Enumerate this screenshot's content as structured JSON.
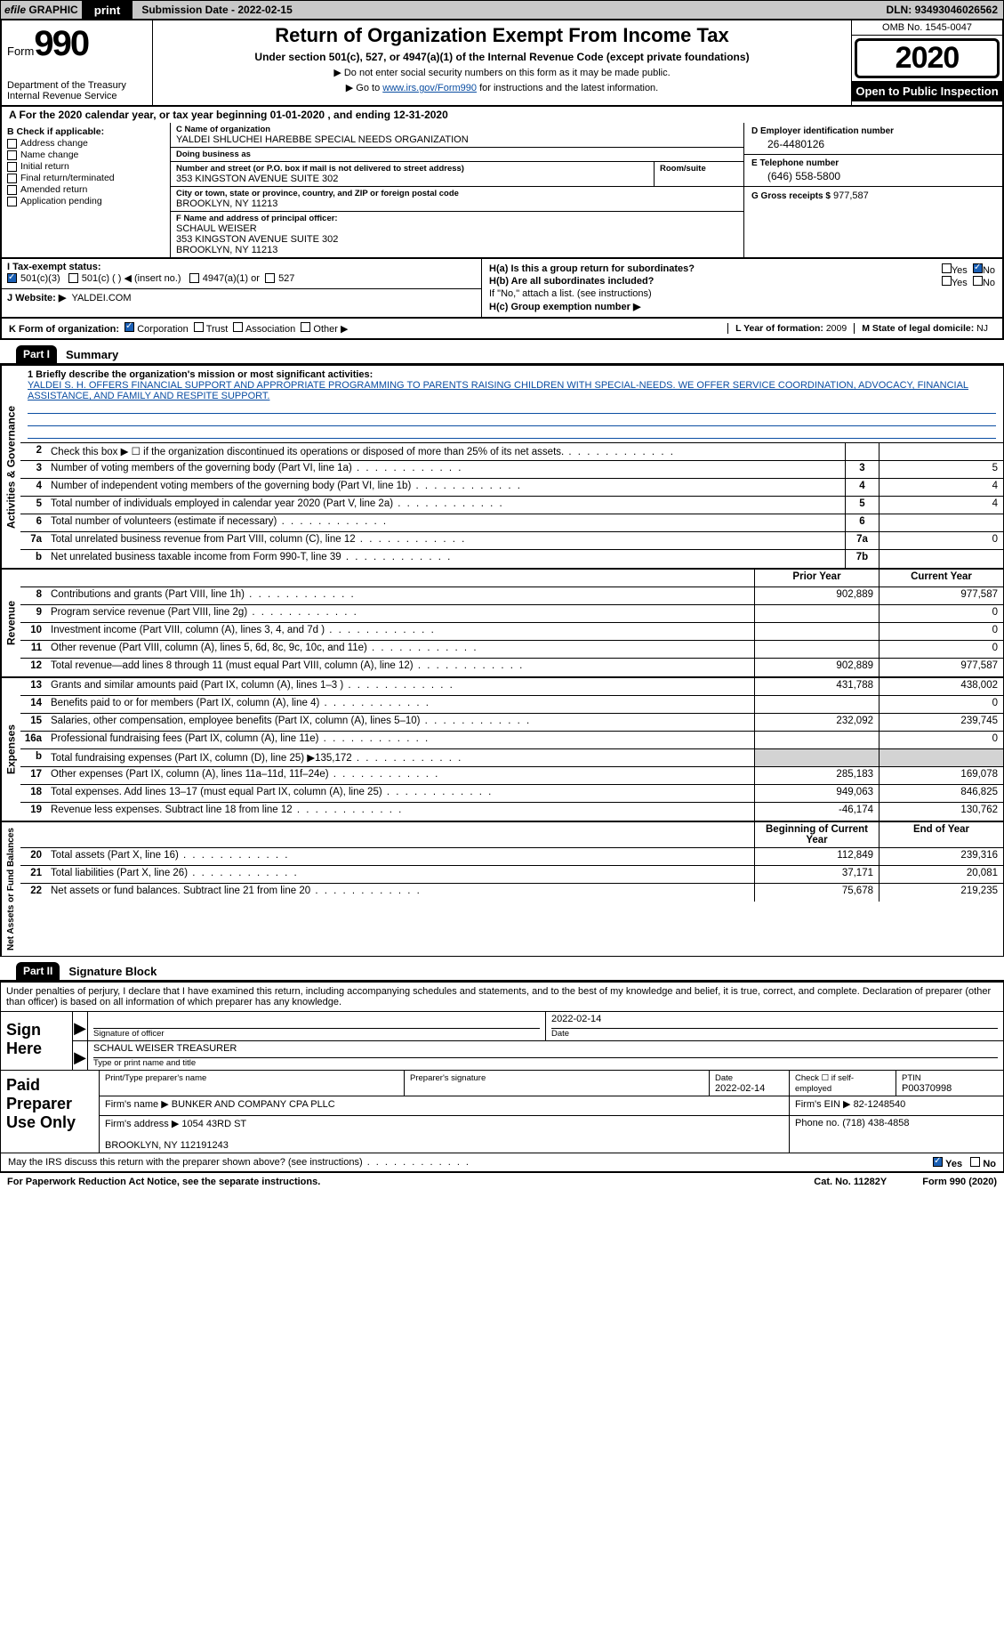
{
  "topbar": {
    "efile_prefix": "efile",
    "efile_rest": "GRAPHIC",
    "print_btn": "print",
    "sub_label": "Submission Date -",
    "sub_date": "2022-02-15",
    "dln_label": "DLN:",
    "dln": "93493046026562"
  },
  "header": {
    "form_word": "Form",
    "form_num": "990",
    "dept": "Department of the Treasury\nInternal Revenue Service",
    "title": "Return of Organization Exempt From Income Tax",
    "subtitle": "Under section 501(c), 527, or 4947(a)(1) of the Internal Revenue Code (except private foundations)",
    "note1": "▶ Do not enter social security numbers on this form as it may be made public.",
    "note2_a": "▶ Go to ",
    "note2_link": "www.irs.gov/Form990",
    "note2_b": " for instructions and the latest information.",
    "omb": "OMB No. 1545-0047",
    "year": "2020",
    "open": "Open to Public Inspection"
  },
  "period": "A For the 2020 calendar year, or tax year beginning 01-01-2020   , and ending 12-31-2020",
  "boxB": {
    "title": "B Check if applicable:",
    "items": [
      "Address change",
      "Name change",
      "Initial return",
      "Final return/terminated",
      "Amended return",
      "Application pending"
    ]
  },
  "boxC": {
    "name_lbl": "C Name of organization",
    "name": "YALDEI SHLUCHEI HAREBBE SPECIAL NEEDS ORGANIZATION",
    "dba_lbl": "Doing business as",
    "dba": "",
    "addr_lbl": "Number and street (or P.O. box if mail is not delivered to street address)",
    "addr": "353 KINGSTON AVENUE SUITE 302",
    "room_lbl": "Room/suite",
    "room": "",
    "city_lbl": "City or town, state or province, country, and ZIP or foreign postal code",
    "city": "BROOKLYN, NY  11213",
    "officer_lbl": "F Name and address of principal officer:",
    "officer_name": "SCHAUL WEISER",
    "officer_addr": "353 KINGSTON AVENUE SUITE 302\nBROOKLYN, NY  11213"
  },
  "boxD": {
    "ein_lbl": "D Employer identification number",
    "ein": "26-4480126",
    "phone_lbl": "E Telephone number",
    "phone": "(646) 558-5800",
    "gross_lbl": "G Gross receipts $",
    "gross": "977,587"
  },
  "boxH": {
    "ha": "H(a)  Is this a group return for subordinates?",
    "hb": "H(b)  Are all subordinates included?",
    "hb_note": "If \"No,\" attach a list. (see instructions)",
    "hc": "H(c)  Group exemption number ▶",
    "yes": "Yes",
    "no": "No"
  },
  "taxI": {
    "label": "I   Tax-exempt status:",
    "opts": [
      "501(c)(3)",
      "501(c) (  ) ◀ (insert no.)",
      "4947(a)(1) or",
      "527"
    ]
  },
  "siteJ": {
    "label": "J   Website: ▶",
    "value": "YALDEI.COM"
  },
  "rowK": {
    "label": "K Form of organization:",
    "opts": [
      "Corporation",
      "Trust",
      "Association",
      "Other ▶"
    ],
    "L_lbl": "L Year of formation:",
    "L_val": "2009",
    "M_lbl": "M State of legal domicile:",
    "M_val": "NJ"
  },
  "part1": {
    "tag": "Part I",
    "title": "Summary"
  },
  "mission": {
    "q": "1  Briefly describe the organization's mission or most significant activities:",
    "text": "YALDEI S. H. OFFERS FINANCIAL SUPPORT AND APPROPRIATE PROGRAMMING TO PARENTS RAISING CHILDREN WITH SPECIAL-NEEDS. WE OFFER SERVICE COORDINATION, ADVOCACY, FINANCIAL ASSISTANCE, AND FAMILY AND RESPITE SUPPORT."
  },
  "activities": {
    "side": "Activities & Governance",
    "rows": [
      {
        "n": "2",
        "d": "Check this box ▶ ☐  if the organization discontinued its operations or disposed of more than 25% of its net assets.",
        "b": "",
        "v": ""
      },
      {
        "n": "3",
        "d": "Number of voting members of the governing body (Part VI, line 1a)",
        "b": "3",
        "v": "5"
      },
      {
        "n": "4",
        "d": "Number of independent voting members of the governing body (Part VI, line 1b)",
        "b": "4",
        "v": "4"
      },
      {
        "n": "5",
        "d": "Total number of individuals employed in calendar year 2020 (Part V, line 2a)",
        "b": "5",
        "v": "4"
      },
      {
        "n": "6",
        "d": "Total number of volunteers (estimate if necessary)",
        "b": "6",
        "v": ""
      },
      {
        "n": "7a",
        "d": "Total unrelated business revenue from Part VIII, column (C), line 12",
        "b": "7a",
        "v": "0"
      },
      {
        "n": "b",
        "d": "Net unrelated business taxable income from Form 990-T, line 39",
        "b": "7b",
        "v": ""
      }
    ]
  },
  "cols": {
    "prior": "Prior Year",
    "current": "Current Year",
    "beg": "Beginning of Current Year",
    "end": "End of Year"
  },
  "revenue": {
    "side": "Revenue",
    "rows": [
      {
        "n": "8",
        "d": "Contributions and grants (Part VIII, line 1h)",
        "p": "902,889",
        "c": "977,587"
      },
      {
        "n": "9",
        "d": "Program service revenue (Part VIII, line 2g)",
        "p": "",
        "c": "0"
      },
      {
        "n": "10",
        "d": "Investment income (Part VIII, column (A), lines 3, 4, and 7d )",
        "p": "",
        "c": "0"
      },
      {
        "n": "11",
        "d": "Other revenue (Part VIII, column (A), lines 5, 6d, 8c, 9c, 10c, and 11e)",
        "p": "",
        "c": "0"
      },
      {
        "n": "12",
        "d": "Total revenue—add lines 8 through 11 (must equal Part VIII, column (A), line 12)",
        "p": "902,889",
        "c": "977,587"
      }
    ]
  },
  "expenses": {
    "side": "Expenses",
    "rows": [
      {
        "n": "13",
        "d": "Grants and similar amounts paid (Part IX, column (A), lines 1–3 )",
        "p": "431,788",
        "c": "438,002"
      },
      {
        "n": "14",
        "d": "Benefits paid to or for members (Part IX, column (A), line 4)",
        "p": "",
        "c": "0"
      },
      {
        "n": "15",
        "d": "Salaries, other compensation, employee benefits (Part IX, column (A), lines 5–10)",
        "p": "232,092",
        "c": "239,745"
      },
      {
        "n": "16a",
        "d": "Professional fundraising fees (Part IX, column (A), line 11e)",
        "p": "",
        "c": "0"
      },
      {
        "n": "b",
        "d": "Total fundraising expenses (Part IX, column (D), line 25) ▶135,172",
        "p": "shade",
        "c": "shade"
      },
      {
        "n": "17",
        "d": "Other expenses (Part IX, column (A), lines 11a–11d, 11f–24e)",
        "p": "285,183",
        "c": "169,078"
      },
      {
        "n": "18",
        "d": "Total expenses. Add lines 13–17 (must equal Part IX, column (A), line 25)",
        "p": "949,063",
        "c": "846,825"
      },
      {
        "n": "19",
        "d": "Revenue less expenses. Subtract line 18 from line 12",
        "p": "-46,174",
        "c": "130,762"
      }
    ]
  },
  "netassets": {
    "side": "Net Assets or Fund Balances",
    "rows": [
      {
        "n": "20",
        "d": "Total assets (Part X, line 16)",
        "p": "112,849",
        "c": "239,316"
      },
      {
        "n": "21",
        "d": "Total liabilities (Part X, line 26)",
        "p": "37,171",
        "c": "20,081"
      },
      {
        "n": "22",
        "d": "Net assets or fund balances. Subtract line 21 from line 20",
        "p": "75,678",
        "c": "219,235"
      }
    ]
  },
  "part2": {
    "tag": "Part II",
    "title": "Signature Block"
  },
  "sig": {
    "decl": "Under penalties of perjury, I declare that I have examined this return, including accompanying schedules and statements, and to the best of my knowledge and belief, it is true, correct, and complete. Declaration of preparer (other than officer) is based on all information of which preparer has any knowledge.",
    "sign_here": "Sign Here",
    "sig_officer": "Signature of officer",
    "date": "Date",
    "date_val": "2022-02-14",
    "name_title": "SCHAUL WEISER  TREASURER",
    "type_name": "Type or print name and title"
  },
  "paid": {
    "label": "Paid Preparer Use Only",
    "hdr": [
      "Print/Type preparer's name",
      "Preparer's signature",
      "Date",
      "",
      "PTIN"
    ],
    "date": "2022-02-14",
    "check_lbl": "Check ☐ if self-employed",
    "ptin": "P00370998",
    "firm_lbl": "Firm's name    ▶",
    "firm": "BUNKER AND COMPANY CPA PLLC",
    "ein_lbl": "Firm's EIN ▶",
    "ein": "82-1248540",
    "addr_lbl": "Firm's address ▶",
    "addr": "1054 43RD ST\n\nBROOKLYN, NY  112191243",
    "phone_lbl": "Phone no.",
    "phone": "(718) 438-4858"
  },
  "footer": {
    "discuss": "May the IRS discuss this return with the preparer shown above? (see instructions)",
    "yes": "Yes",
    "no": "No",
    "pra": "For Paperwork Reduction Act Notice, see the separate instructions.",
    "cat": "Cat. No. 11282Y",
    "form": "Form 990 (2020)"
  }
}
